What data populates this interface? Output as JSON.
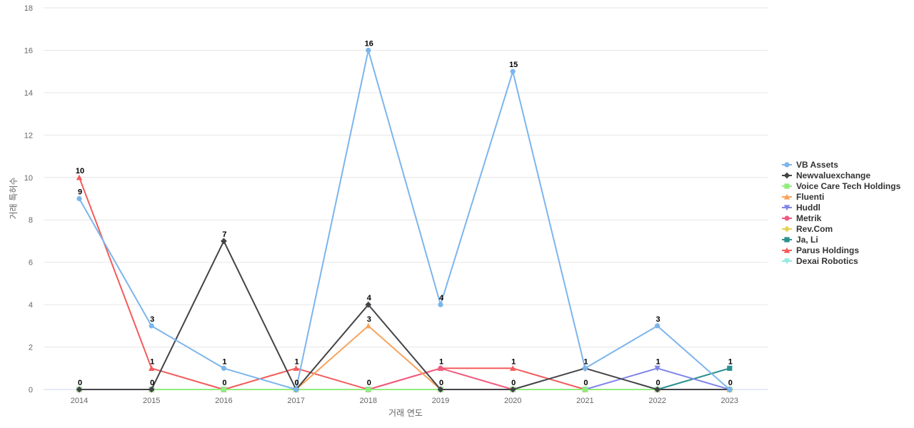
{
  "chart_data": {
    "type": "line",
    "categories": [
      "2014",
      "2015",
      "2016",
      "2017",
      "2018",
      "2019",
      "2020",
      "2021",
      "2022",
      "2023"
    ],
    "xlabel": "거래 연도",
    "ylabel": "거래 특허수",
    "ylim": [
      0,
      18
    ],
    "yticks": [
      0,
      2,
      4,
      6,
      8,
      10,
      12,
      14,
      16,
      18
    ],
    "grid": true,
    "legend_position": "right",
    "series": [
      {
        "name": "VB Assets",
        "color": "#7cb5ec",
        "marker": "circle",
        "values": [
          9,
          3,
          1,
          0,
          16,
          4,
          15,
          1,
          3,
          0
        ]
      },
      {
        "name": "Newvaluexchange",
        "color": "#434348",
        "marker": "diamond",
        "values": [
          0,
          0,
          7,
          0,
          4,
          0,
          0,
          1,
          0,
          0
        ]
      },
      {
        "name": "Voice Care Tech Holdings",
        "color": "#90ed7d",
        "marker": "square",
        "values": [
          0,
          0,
          0,
          0,
          0,
          0,
          0,
          0,
          0,
          0
        ]
      },
      {
        "name": "Fluenti",
        "color": "#f7a35c",
        "marker": "triangle",
        "values": [
          0,
          0,
          0,
          0,
          3,
          0,
          0,
          0,
          0,
          0
        ]
      },
      {
        "name": "Huddl",
        "color": "#8085e9",
        "marker": "triangle-down",
        "values": [
          0,
          0,
          0,
          0,
          0,
          0,
          0,
          0,
          1,
          0
        ]
      },
      {
        "name": "Metrik",
        "color": "#f15c80",
        "marker": "circle",
        "values": [
          0,
          0,
          0,
          0,
          0,
          1,
          0,
          0,
          0,
          0
        ]
      },
      {
        "name": "Rev.Com",
        "color": "#e4d354",
        "marker": "diamond",
        "values": [
          0,
          0,
          0,
          0,
          0,
          0,
          0,
          0,
          0,
          0
        ]
      },
      {
        "name": "Ja, Li",
        "color": "#2b908f",
        "marker": "square",
        "values": [
          0,
          0,
          0,
          0,
          0,
          0,
          0,
          0,
          0,
          1
        ]
      },
      {
        "name": "Parus Holdings",
        "color": "#f45b5b",
        "marker": "triangle",
        "values": [
          10,
          1,
          0,
          1,
          0,
          1,
          1,
          0,
          0,
          0
        ]
      },
      {
        "name": "Dexai Robotics",
        "color": "#91e8e1",
        "marker": "triangle-down",
        "values": [
          0,
          0,
          0,
          0,
          0,
          0,
          0,
          0,
          0,
          0
        ]
      }
    ],
    "data_labels": [
      {
        "x": "2014",
        "value": 10
      },
      {
        "x": "2014",
        "value": 9
      },
      {
        "x": "2014",
        "value": 0
      },
      {
        "x": "2015",
        "value": 3
      },
      {
        "x": "2015",
        "value": 1
      },
      {
        "x": "2015",
        "value": 0
      },
      {
        "x": "2016",
        "value": 7
      },
      {
        "x": "2016",
        "value": 1
      },
      {
        "x": "2016",
        "value": 0
      },
      {
        "x": "2017",
        "value": 1
      },
      {
        "x": "2017",
        "value": 0
      },
      {
        "x": "2018",
        "value": 16
      },
      {
        "x": "2018",
        "value": 4
      },
      {
        "x": "2018",
        "value": 3
      },
      {
        "x": "2018",
        "value": 0
      },
      {
        "x": "2019",
        "value": 4
      },
      {
        "x": "2019",
        "value": 1
      },
      {
        "x": "2019",
        "value": 0
      },
      {
        "x": "2020",
        "value": 15
      },
      {
        "x": "2020",
        "value": 1
      },
      {
        "x": "2020",
        "value": 0
      },
      {
        "x": "2021",
        "value": 1
      },
      {
        "x": "2021",
        "value": 0
      },
      {
        "x": "2022",
        "value": 3
      },
      {
        "x": "2022",
        "value": 1
      },
      {
        "x": "2022",
        "value": 0
      },
      {
        "x": "2023",
        "value": 1
      },
      {
        "x": "2023",
        "value": 0
      }
    ]
  }
}
